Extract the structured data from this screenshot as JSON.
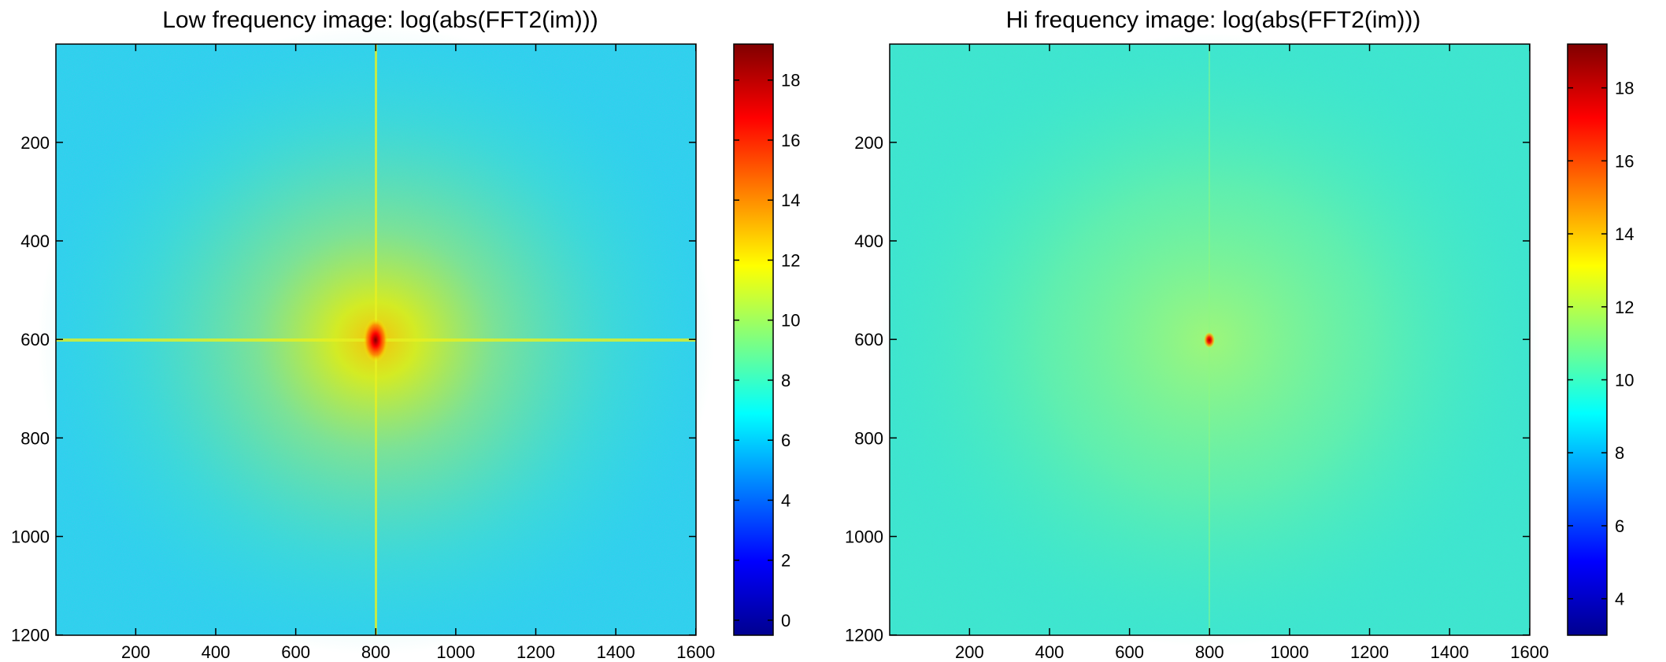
{
  "chart_data": [
    {
      "type": "heatmap",
      "title": "Low frequency image: log(abs(FFT2(im)))",
      "xlim": [
        1,
        1600
      ],
      "ylim": [
        1,
        1200
      ],
      "y_reversed": true,
      "xticks": [
        200,
        400,
        600,
        800,
        1000,
        1200,
        1400,
        1600
      ],
      "yticks": [
        200,
        400,
        600,
        800,
        1000,
        1200
      ],
      "colormap": "jet",
      "colorbar": {
        "min": -0.5,
        "max": 19.2,
        "ticks": [
          0,
          2,
          4,
          6,
          8,
          10,
          12,
          14,
          16,
          18
        ]
      },
      "peak": {
        "x": 800,
        "y": 600,
        "value": 19
      },
      "background_value": 7.5,
      "cross_lines": true
    },
    {
      "type": "heatmap",
      "title": "Hi frequency image: log(abs(FFT2(im)))",
      "xlim": [
        1,
        1600
      ],
      "ylim": [
        1,
        1200
      ],
      "y_reversed": true,
      "xticks": [
        200,
        400,
        600,
        800,
        1000,
        1200,
        1400,
        1600
      ],
      "yticks": [
        200,
        400,
        600,
        800,
        1000,
        1200
      ],
      "colormap": "jet",
      "colorbar": {
        "min": 3,
        "max": 19.2,
        "ticks": [
          4,
          6,
          8,
          10,
          12,
          14,
          16,
          18
        ]
      },
      "peak": {
        "x": 800,
        "y": 600,
        "value": 19
      },
      "background_value": 10.3,
      "cross_lines": false
    }
  ]
}
